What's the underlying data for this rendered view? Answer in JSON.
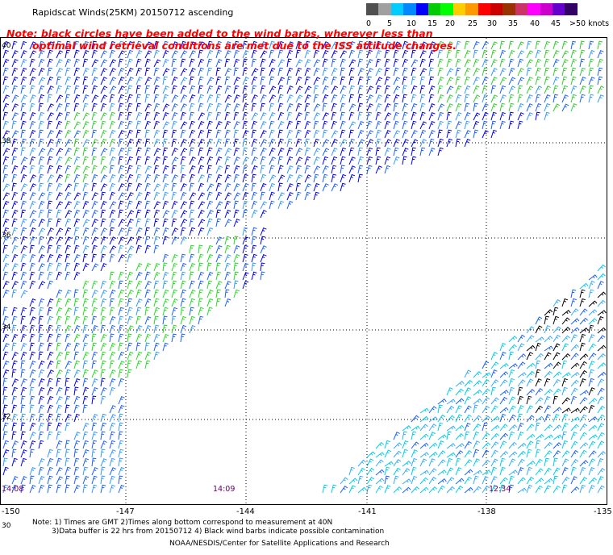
{
  "title": "Rapidscat Winds(25KM) 20150712 ascending",
  "note_line1": "Note: black circles have been added to the wind barbs, wherever less than",
  "note_line2": "optimal wind retrieval conditions are met due to the ISS attitude changes.",
  "legend": {
    "labels": [
      "0",
      "5",
      "10",
      "15",
      "20",
      "25",
      "30",
      "35",
      "40",
      "45",
      ">50 knots"
    ],
    "colors": [
      "#505050",
      "#a0a0a0",
      "#00ccff",
      "#0088ff",
      "#0000ff",
      "#00cc00",
      "#00ff00",
      "#ffcc00",
      "#ff9900",
      "#ff0000",
      "#cc0000",
      "#993300",
      "#cc3366",
      "#ff00ff",
      "#cc00cc",
      "#6600cc",
      "#330066"
    ]
  },
  "lat_labels": [
    "40",
    "38",
    "36",
    "34",
    "32",
    "30"
  ],
  "lon_labels": [
    "-150",
    "-147",
    "-144",
    "-141",
    "-138",
    "-135"
  ],
  "time_labels": [
    "14:08",
    "14:09",
    "12:34"
  ],
  "footnotes": {
    "line1": "Note: 1) Times are GMT 2)Times along bottom correspond to measurement at 40N",
    "line2": "3)Data buffer is 22 hrs from 20150712 4) Black wind barbs indicate possible contamination",
    "line3": "NOAA/NESDIS/Center for Satellite Applications and Research"
  }
}
